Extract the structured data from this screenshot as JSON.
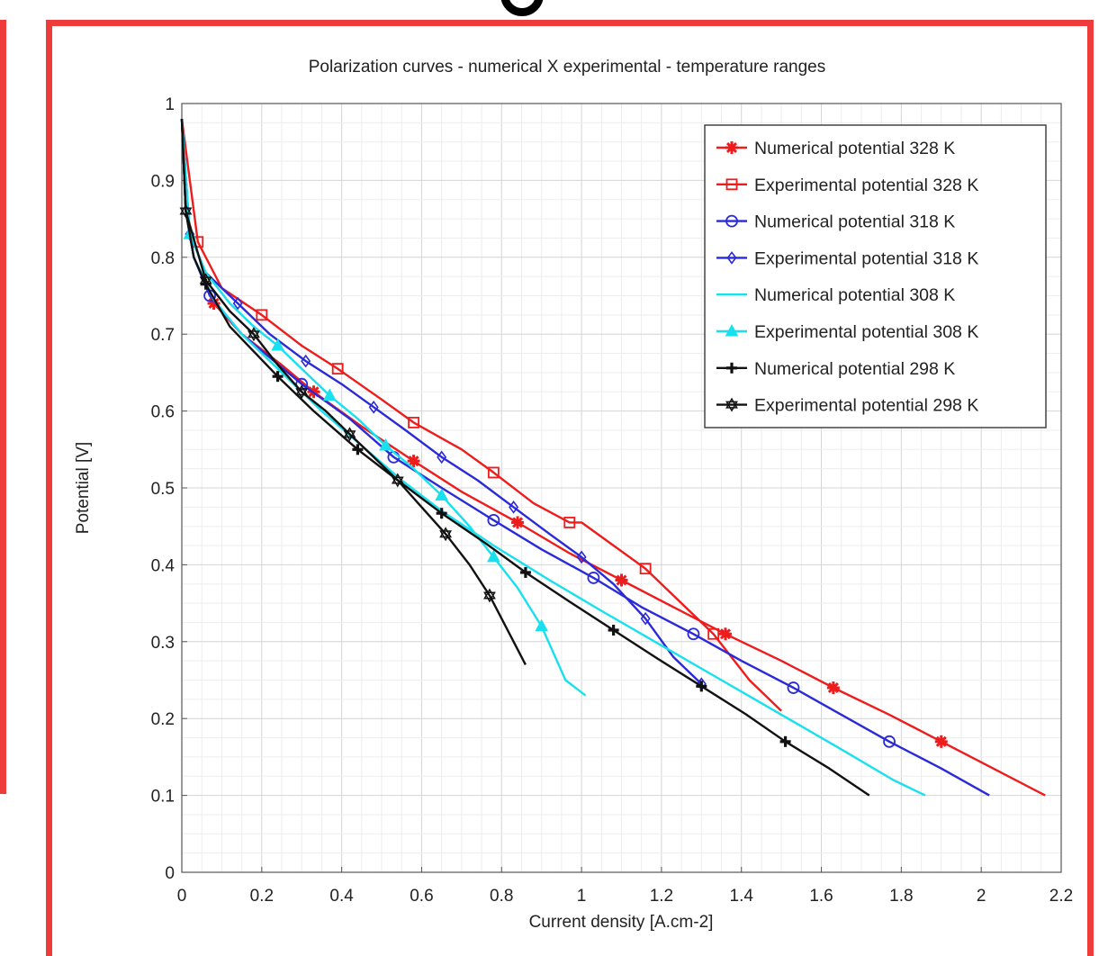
{
  "chart_data": {
    "type": "line",
    "title": "Polarization curves  -  numerical X experimental  -  temperature ranges",
    "xlabel": "Current density  [A.cm-2]",
    "ylabel": "Potential  [V]",
    "xlim": [
      0,
      2.2
    ],
    "ylim": [
      0,
      1
    ],
    "xticks": [
      "0",
      "0.2",
      "0.4",
      "0.6",
      "0.8",
      "1",
      "1.2",
      "1.4",
      "1.6",
      "1.8",
      "2",
      "2.2"
    ],
    "yticks": [
      "0",
      "0.1",
      "0.2",
      "0.3",
      "0.4",
      "0.5",
      "0.6",
      "0.7",
      "0.8",
      "0.9",
      "1"
    ],
    "grid": true,
    "legend_position": "top-right",
    "series": [
      {
        "name": "Numerical potential  328 K",
        "color": "#ee1c1c",
        "marker": "asterisk",
        "x": [
          0.0,
          0.01,
          0.03,
          0.08,
          0.15,
          0.25,
          0.33,
          0.45,
          0.58,
          0.7,
          0.84,
          0.97,
          1.1,
          1.23,
          1.36,
          1.5,
          1.63,
          1.77,
          1.9,
          2.03,
          2.16
        ],
        "y": [
          0.98,
          0.86,
          0.8,
          0.74,
          0.7,
          0.66,
          0.625,
          0.58,
          0.535,
          0.495,
          0.455,
          0.415,
          0.38,
          0.345,
          0.31,
          0.275,
          0.24,
          0.205,
          0.17,
          0.135,
          0.1
        ],
        "marker_indices": [
          3,
          6,
          8,
          10,
          12,
          14,
          16,
          18
        ]
      },
      {
        "name": "Experimental potential 328 K",
        "color": "#ee1c1c",
        "marker": "square",
        "x": [
          0.0,
          0.04,
          0.1,
          0.2,
          0.3,
          0.39,
          0.5,
          0.58,
          0.7,
          0.78,
          0.88,
          0.97,
          1.0,
          1.08,
          1.16,
          1.25,
          1.33,
          1.42,
          1.5
        ],
        "y": [
          0.98,
          0.82,
          0.76,
          0.725,
          0.685,
          0.655,
          0.615,
          0.585,
          0.55,
          0.52,
          0.48,
          0.455,
          0.455,
          0.425,
          0.395,
          0.35,
          0.31,
          0.25,
          0.21
        ],
        "marker_indices": [
          1,
          3,
          5,
          7,
          9,
          11,
          14,
          16
        ]
      },
      {
        "name": "Numerical potential  318 K",
        "color": "#2a2ad8",
        "marker": "circle",
        "x": [
          0.0,
          0.01,
          0.03,
          0.07,
          0.15,
          0.3,
          0.42,
          0.53,
          0.65,
          0.78,
          0.9,
          1.03,
          1.15,
          1.28,
          1.4,
          1.53,
          1.65,
          1.77,
          1.9,
          2.02
        ],
        "y": [
          0.98,
          0.86,
          0.8,
          0.75,
          0.7,
          0.635,
          0.59,
          0.54,
          0.5,
          0.458,
          0.42,
          0.383,
          0.345,
          0.31,
          0.275,
          0.24,
          0.205,
          0.17,
          0.135,
          0.1
        ],
        "marker_indices": [
          3,
          5,
          7,
          9,
          11,
          13,
          15,
          17
        ]
      },
      {
        "name": "Experimental potential 318 K",
        "color": "#2a2ad8",
        "marker": "diamond",
        "x": [
          0.0,
          0.02,
          0.06,
          0.14,
          0.22,
          0.31,
          0.4,
          0.48,
          0.56,
          0.65,
          0.74,
          0.83,
          0.92,
          1.0,
          1.08,
          1.16,
          1.23,
          1.3
        ],
        "y": [
          0.98,
          0.83,
          0.78,
          0.74,
          0.7,
          0.665,
          0.635,
          0.605,
          0.575,
          0.54,
          0.51,
          0.475,
          0.44,
          0.41,
          0.375,
          0.33,
          0.28,
          0.245
        ],
        "marker_indices": [
          1,
          3,
          5,
          7,
          9,
          11,
          13,
          15,
          17
        ]
      },
      {
        "name": "Numerical potential  308 K",
        "color": "#19e0ee",
        "marker": "none",
        "x": [
          0.0,
          0.01,
          0.03,
          0.08,
          0.15,
          0.25,
          0.35,
          0.45,
          0.55,
          0.65,
          0.78,
          0.92,
          1.05,
          1.2,
          1.35,
          1.5,
          1.65,
          1.78,
          1.86
        ],
        "y": [
          0.98,
          0.86,
          0.8,
          0.745,
          0.7,
          0.65,
          0.6,
          0.555,
          0.51,
          0.47,
          0.425,
          0.38,
          0.34,
          0.295,
          0.25,
          0.205,
          0.16,
          0.12,
          0.1
        ],
        "marker_indices": []
      },
      {
        "name": "Experimental potential 308 K",
        "color": "#19e0ee",
        "marker": "triangle",
        "x": [
          0.0,
          0.02,
          0.06,
          0.12,
          0.18,
          0.24,
          0.3,
          0.37,
          0.44,
          0.51,
          0.58,
          0.65,
          0.72,
          0.78,
          0.84,
          0.9,
          0.96,
          1.01
        ],
        "y": [
          0.98,
          0.83,
          0.78,
          0.74,
          0.71,
          0.685,
          0.655,
          0.62,
          0.59,
          0.555,
          0.525,
          0.49,
          0.45,
          0.41,
          0.37,
          0.32,
          0.25,
          0.23
        ],
        "marker_indices": [
          1,
          5,
          7,
          9,
          11,
          13,
          15
        ]
      },
      {
        "name": "Numerical potential  298 K",
        "color": "#111111",
        "marker": "plus",
        "x": [
          0.0,
          0.01,
          0.03,
          0.06,
          0.12,
          0.24,
          0.33,
          0.44,
          0.54,
          0.65,
          0.76,
          0.86,
          0.97,
          1.08,
          1.19,
          1.3,
          1.41,
          1.51,
          1.62,
          1.72
        ],
        "y": [
          0.98,
          0.86,
          0.8,
          0.765,
          0.71,
          0.645,
          0.6,
          0.55,
          0.51,
          0.467,
          0.428,
          0.39,
          0.352,
          0.315,
          0.278,
          0.242,
          0.206,
          0.17,
          0.135,
          0.1
        ],
        "marker_indices": [
          3,
          5,
          7,
          9,
          11,
          13,
          15,
          17
        ]
      },
      {
        "name": "Experimental potential 298 K",
        "color": "#111111",
        "marker": "star",
        "x": [
          0.0,
          0.01,
          0.06,
          0.12,
          0.18,
          0.24,
          0.3,
          0.36,
          0.42,
          0.48,
          0.54,
          0.6,
          0.66,
          0.72,
          0.77,
          0.82,
          0.86
        ],
        "y": [
          0.98,
          0.86,
          0.77,
          0.73,
          0.7,
          0.66,
          0.625,
          0.6,
          0.57,
          0.54,
          0.51,
          0.475,
          0.44,
          0.4,
          0.36,
          0.31,
          0.27
        ],
        "marker_indices": [
          1,
          2,
          4,
          6,
          8,
          10,
          12,
          14
        ]
      }
    ]
  }
}
